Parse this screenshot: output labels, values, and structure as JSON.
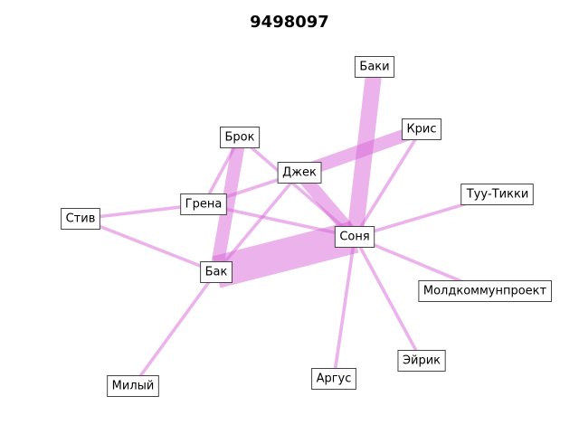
{
  "title": "9498097",
  "edge_color": "#d866d8",
  "nodes": [
    {
      "id": "baki",
      "label": "Баки"
    },
    {
      "id": "kris",
      "label": "Крис"
    },
    {
      "id": "brok",
      "label": "Брок"
    },
    {
      "id": "dzhek",
      "label": "Джек"
    },
    {
      "id": "tuu",
      "label": "Туу-Тикки"
    },
    {
      "id": "stiv",
      "label": "Стив"
    },
    {
      "id": "grena",
      "label": "Грена"
    },
    {
      "id": "sonya",
      "label": "Соня"
    },
    {
      "id": "bak",
      "label": "Бак"
    },
    {
      "id": "mold",
      "label": "Молдкоммунпроект"
    },
    {
      "id": "eirik",
      "label": "Эйрик"
    },
    {
      "id": "argus",
      "label": "Аргус"
    },
    {
      "id": "miliy",
      "label": "Милый"
    }
  ],
  "edges": [
    {
      "source": "sonya",
      "target": "bak",
      "weight": 10
    },
    {
      "source": "sonya",
      "target": "baki",
      "weight": 5
    },
    {
      "source": "sonya",
      "target": "dzhek",
      "weight": 4
    },
    {
      "source": "dzhek",
      "target": "kris",
      "weight": 4
    },
    {
      "source": "brok",
      "target": "bak",
      "weight": 4
    },
    {
      "source": "brok",
      "target": "sonya",
      "weight": 1
    },
    {
      "source": "brok",
      "target": "grena",
      "weight": 1
    },
    {
      "source": "dzhek",
      "target": "grena",
      "weight": 1
    },
    {
      "source": "dzhek",
      "target": "bak",
      "weight": 1
    },
    {
      "source": "grena",
      "target": "sonya",
      "weight": 1
    },
    {
      "source": "stiv",
      "target": "grena",
      "weight": 1
    },
    {
      "source": "stiv",
      "target": "bak",
      "weight": 1
    },
    {
      "source": "sonya",
      "target": "kris",
      "weight": 1
    },
    {
      "source": "sonya",
      "target": "tuu",
      "weight": 1
    },
    {
      "source": "sonya",
      "target": "mold",
      "weight": 1
    },
    {
      "source": "sonya",
      "target": "eirik",
      "weight": 1
    },
    {
      "source": "sonya",
      "target": "argus",
      "weight": 1
    },
    {
      "source": "bak",
      "target": "miliy",
      "weight": 1
    }
  ]
}
